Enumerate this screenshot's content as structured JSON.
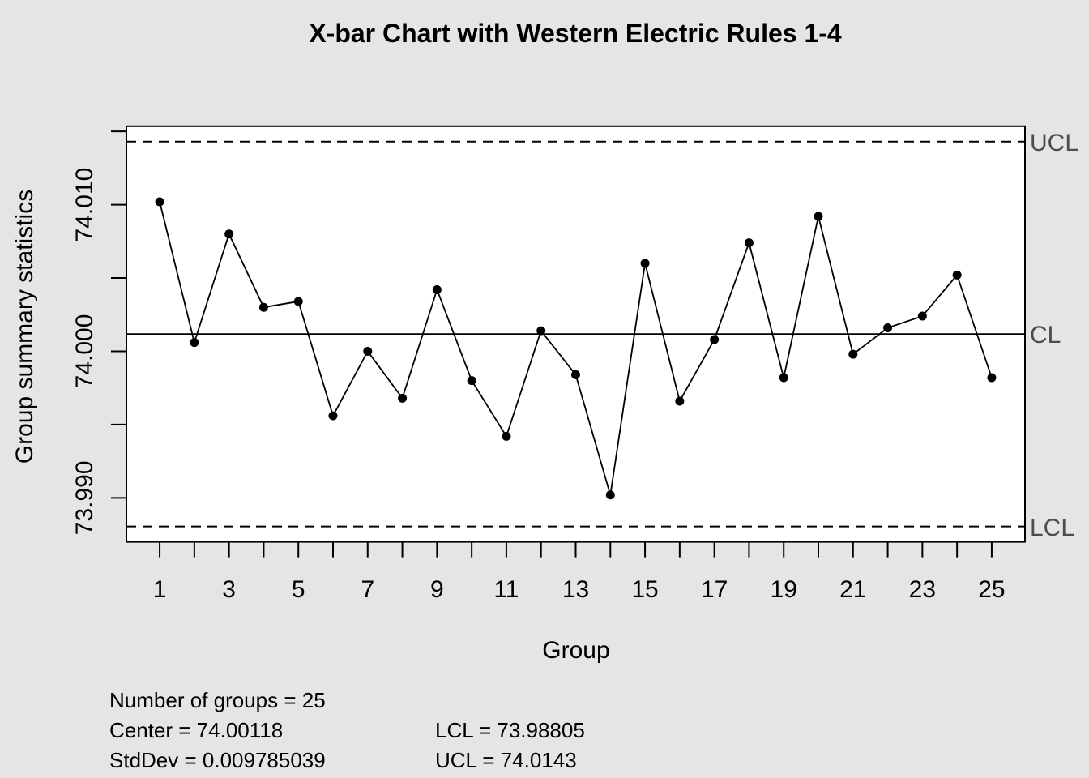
{
  "title": "X-bar Chart with Western Electric Rules 1-4",
  "colors": {
    "margin_background": "#e5e5e5",
    "plot_background": "#ffffff",
    "axis_and_data": "#000000",
    "limit_label_text": "#4d4d4d"
  },
  "chart_data": {
    "type": "line",
    "title": "X-bar Chart with Western Electric Rules 1-4",
    "xlabel": "Group",
    "ylabel": "Group summary statistics",
    "groups": [
      1,
      2,
      3,
      4,
      5,
      6,
      7,
      8,
      9,
      10,
      11,
      12,
      13,
      14,
      15,
      16,
      17,
      18,
      19,
      20,
      21,
      22,
      23,
      24,
      25
    ],
    "values": [
      74.0102,
      74.0006,
      74.008,
      74.003,
      74.0034,
      73.9956,
      74.0,
      73.9968,
      74.0042,
      73.998,
      73.9942,
      74.0014,
      73.9984,
      73.9902,
      74.006,
      73.9966,
      74.0008,
      74.0074,
      73.9982,
      74.0092,
      73.9998,
      74.0016,
      74.0024,
      74.0052,
      73.9982
    ],
    "center": 74.00118,
    "ucl": 74.0143,
    "lcl": 73.98805,
    "stddev": 0.009785039,
    "number_of_groups": 25,
    "xlim": [
      0.04,
      25.96
    ],
    "ylim": [
      73.987,
      74.01535
    ],
    "x_tick_values": [
      1,
      2,
      3,
      4,
      5,
      6,
      7,
      8,
      9,
      10,
      11,
      12,
      13,
      14,
      15,
      16,
      17,
      18,
      19,
      20,
      21,
      22,
      23,
      24,
      25
    ],
    "x_tick_labels": [
      "1",
      "",
      "3",
      "",
      "5",
      "",
      "7",
      "",
      "9",
      "",
      "11",
      "",
      "13",
      "",
      "15",
      "",
      "17",
      "",
      "19",
      "",
      "21",
      "",
      "23",
      "",
      "25"
    ],
    "y_tick_values": [
      73.99,
      73.995,
      74.0,
      74.005,
      74.01,
      74.015
    ],
    "y_tick_labels": [
      "73.990",
      "",
      "74.000",
      "",
      "74.010",
      ""
    ],
    "limit_line_styles": {
      "ucl": "dashed",
      "cl": "solid",
      "lcl": "dashed"
    },
    "legend_position": "none",
    "grid": false,
    "limit_labels": {
      "ucl": "UCL",
      "cl": "CL",
      "lcl": "LCL"
    }
  },
  "stats": {
    "col1": [
      "Number of groups = 25",
      "Center = 74.00118",
      "StdDev = 0.009785039"
    ],
    "col2": [
      "LCL = 73.98805",
      "UCL = 74.0143"
    ]
  }
}
